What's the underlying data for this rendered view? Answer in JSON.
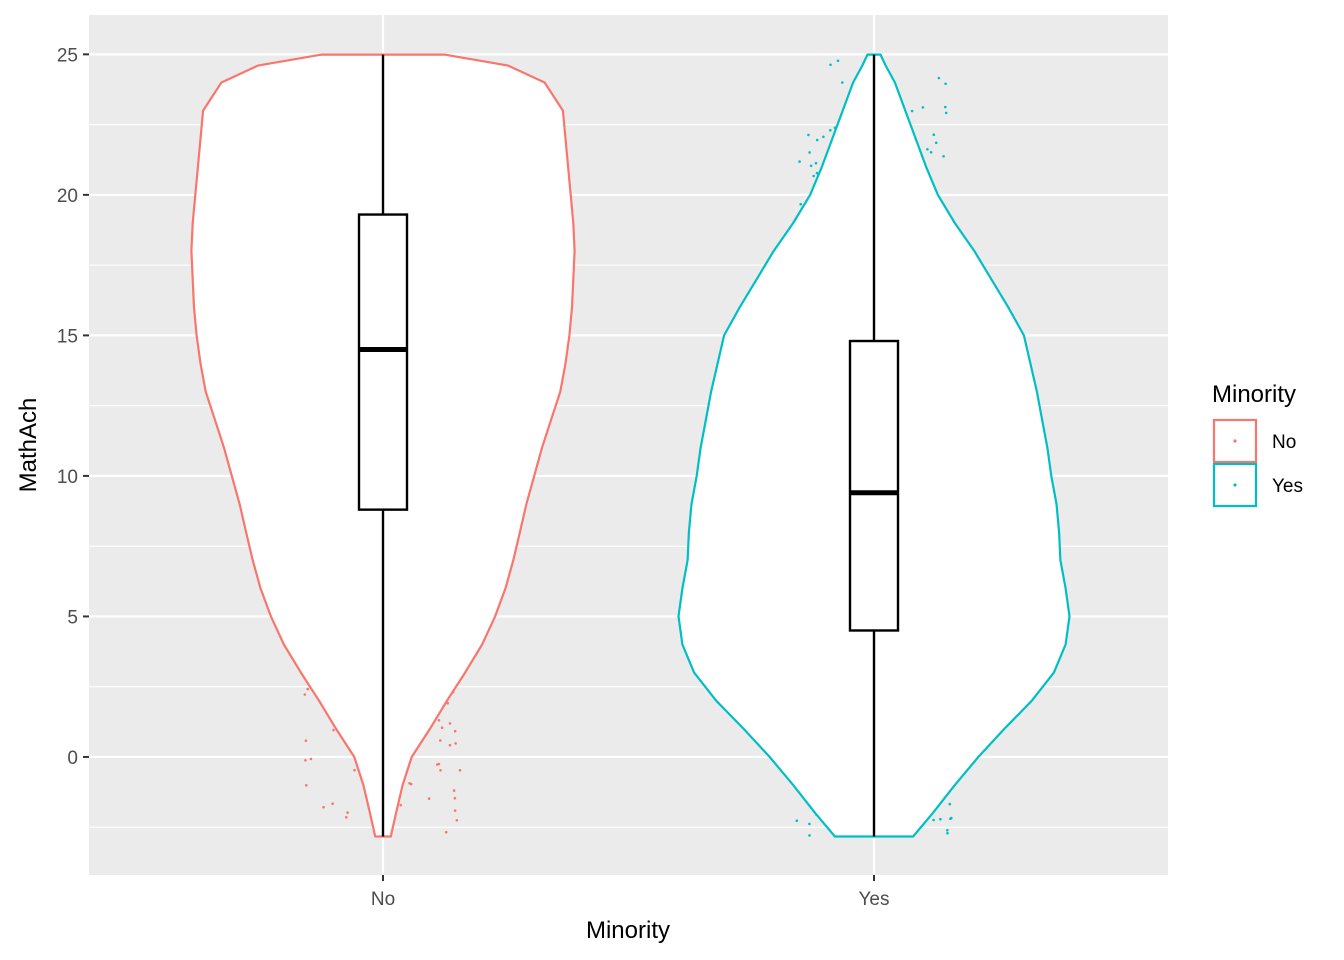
{
  "chart_data": {
    "type": "violin",
    "title": "",
    "xlabel": "Minority",
    "ylabel": "MathAch",
    "categories": [
      "No",
      "Yes"
    ],
    "ylim": [
      -4.2,
      26.4
    ],
    "y_ticks": [
      0,
      5,
      10,
      15,
      20,
      25
    ],
    "grid": true,
    "legend": {
      "title": "Minority",
      "placement": "right",
      "entries": [
        "No",
        "Yes"
      ]
    },
    "colors": {
      "No": "#F8766D",
      "Yes": "#00BFC4",
      "panel": "#EBEBEB",
      "grid": "#FFFFFF"
    },
    "series": [
      {
        "name": "No",
        "point_count": 2000,
        "box": {
          "min": -2.83,
          "q1": 8.8,
          "median": 14.5,
          "q3": 19.3,
          "max": 24.99
        },
        "violin_half_width": [
          [
            -2.83,
            0.06
          ],
          [
            -2,
            0.1
          ],
          [
            -1,
            0.15
          ],
          [
            0,
            0.22
          ],
          [
            1,
            0.36
          ],
          [
            2,
            0.49
          ],
          [
            3,
            0.63
          ],
          [
            4,
            0.76
          ],
          [
            5,
            0.86
          ],
          [
            6,
            0.94
          ],
          [
            7,
            1.0
          ],
          [
            8,
            1.05
          ],
          [
            9,
            1.1
          ],
          [
            10,
            1.16
          ],
          [
            11,
            1.22
          ],
          [
            12,
            1.29
          ],
          [
            13,
            1.36
          ],
          [
            14,
            1.4
          ],
          [
            15,
            1.43
          ],
          [
            16,
            1.45
          ],
          [
            17,
            1.46
          ],
          [
            18,
            1.47
          ],
          [
            19,
            1.46
          ],
          [
            20,
            1.44
          ],
          [
            21,
            1.42
          ],
          [
            22,
            1.4
          ],
          [
            23,
            1.38
          ],
          [
            24,
            1.24
          ],
          [
            24.6,
            0.96
          ],
          [
            24.99,
            0.47
          ]
        ]
      },
      {
        "name": "Yes",
        "point_count": 1300,
        "box": {
          "min": -2.83,
          "q1": 4.5,
          "median": 9.4,
          "q3": 14.8,
          "max": 24.99
        },
        "violin_half_width": [
          [
            -2.83,
            0.3
          ],
          [
            -2,
            0.45
          ],
          [
            -1,
            0.62
          ],
          [
            0,
            0.8
          ],
          [
            1,
            1.0
          ],
          [
            2,
            1.21
          ],
          [
            3,
            1.38
          ],
          [
            4,
            1.47
          ],
          [
            5,
            1.5
          ],
          [
            6,
            1.47
          ],
          [
            7,
            1.43
          ],
          [
            8,
            1.42
          ],
          [
            9,
            1.4
          ],
          [
            10,
            1.36
          ],
          [
            11,
            1.33
          ],
          [
            12,
            1.29
          ],
          [
            13,
            1.25
          ],
          [
            14,
            1.2
          ],
          [
            15,
            1.15
          ],
          [
            16,
            1.03
          ],
          [
            17,
            0.9
          ],
          [
            18,
            0.77
          ],
          [
            19,
            0.62
          ],
          [
            20,
            0.49
          ],
          [
            21,
            0.4
          ],
          [
            22,
            0.32
          ],
          [
            23,
            0.24
          ],
          [
            24,
            0.16
          ],
          [
            24.6,
            0.09
          ],
          [
            24.99,
            0.05
          ]
        ]
      }
    ]
  }
}
